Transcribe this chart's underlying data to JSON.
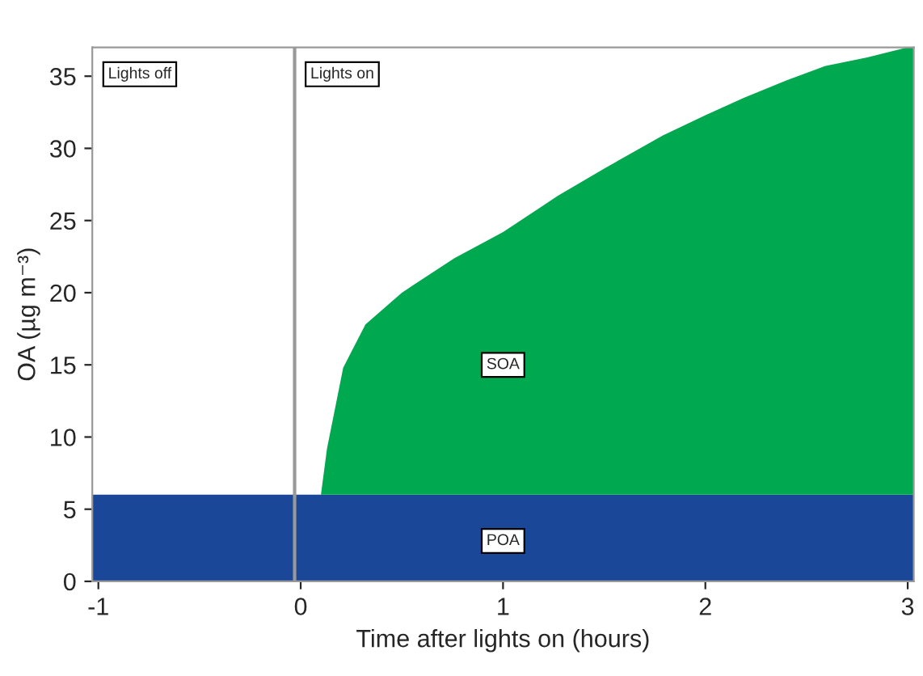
{
  "chart_data": {
    "type": "area",
    "stacked": true,
    "xlabel": "Time after lights on (hours)",
    "ylabel": "OA (µg m⁻³)",
    "x": [
      -1.03,
      0.1,
      0.13,
      0.21,
      0.32,
      0.5,
      0.76,
      1.0,
      1.27,
      1.5,
      1.79,
      2.0,
      2.19,
      2.4,
      2.59,
      2.8,
      3.0,
      3.03
    ],
    "series": [
      {
        "color": "#1a4797",
        "values": [
          6,
          6,
          6,
          6,
          6,
          6,
          6,
          6,
          6,
          6,
          6,
          6,
          6,
          6,
          6,
          6,
          6,
          6
        ]
      },
      {
        "color": "#00a84f",
        "values": [
          0,
          0,
          3.2,
          8.8,
          11.8,
          14,
          16.4,
          18.2,
          20.7,
          22.6,
          24.9,
          26.3,
          27.5,
          28.7,
          29.7,
          30.3,
          31,
          31
        ]
      }
    ],
    "xlim": [
      -1.03,
      3.03
    ],
    "ylim": [
      0,
      37
    ],
    "xticks": [
      -1,
      0,
      1,
      2,
      3
    ],
    "yticks": [
      0,
      5,
      10,
      15,
      20,
      25,
      30,
      35
    ],
    "ref_lines": [
      {
        "axis": "x",
        "value": -0.03,
        "color": "#999999"
      }
    ],
    "annotations": [
      "Lights off",
      "Lights on",
      {
        "text": "SOA",
        "x": 1.0,
        "y": 15
      },
      {
        "text": "POA",
        "x": 1.0,
        "y": 2.8
      }
    ],
    "grid": false,
    "legend": false
  }
}
